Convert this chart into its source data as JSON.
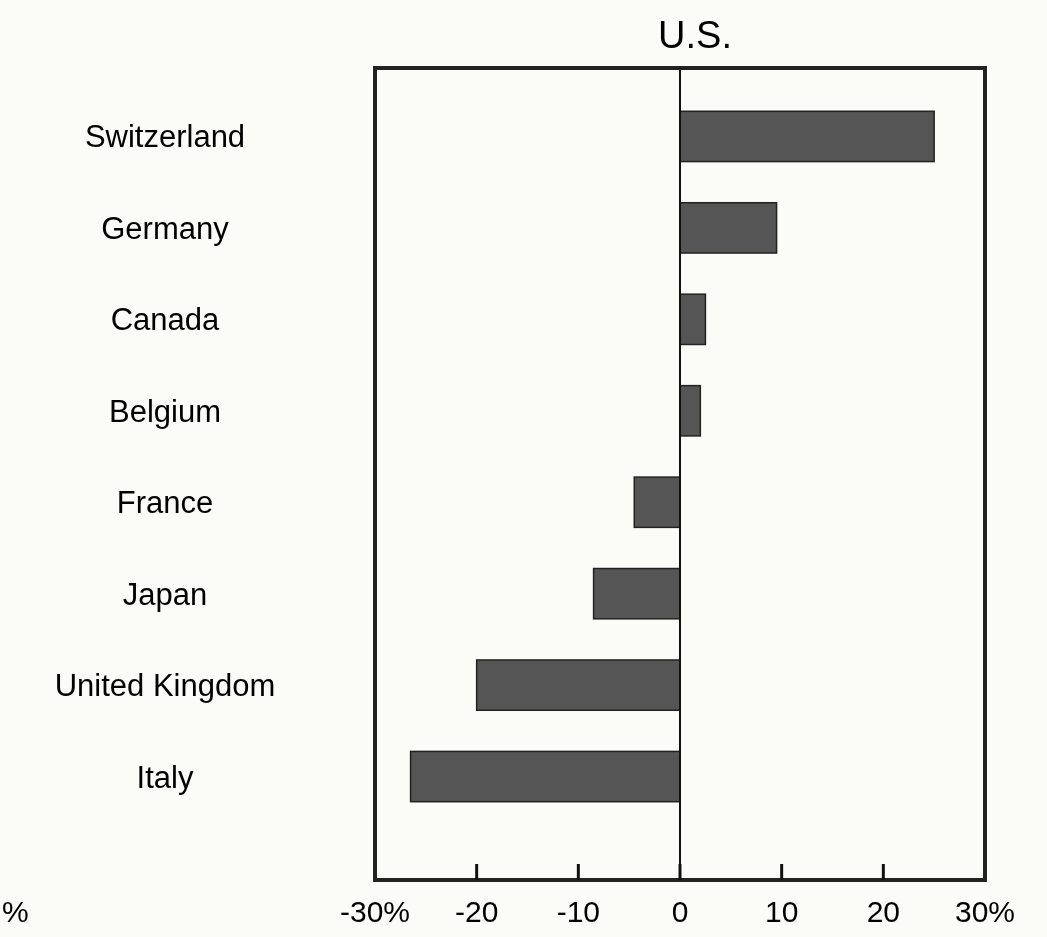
{
  "chart_data": {
    "type": "bar",
    "orientation": "horizontal",
    "title": "U.S.",
    "categories": [
      "Switzerland",
      "Germany",
      "Canada",
      "Belgium",
      "France",
      "Japan",
      "United Kingdom",
      "Italy"
    ],
    "values": [
      25,
      9.5,
      2.5,
      2,
      -4.5,
      -8.5,
      -20,
      -26.5
    ],
    "color": "#555555",
    "xlim": [
      -30,
      30
    ],
    "xticks": [
      {
        "value": -30,
        "label": "-30%"
      },
      -20,
      -10,
      0,
      10,
      20,
      {
        "value": 30,
        "label": "30%"
      }
    ],
    "annotations": [
      "%"
    ],
    "ref_lines": [
      {
        "axis": "x",
        "value": 0
      }
    ],
    "grid": false
  }
}
